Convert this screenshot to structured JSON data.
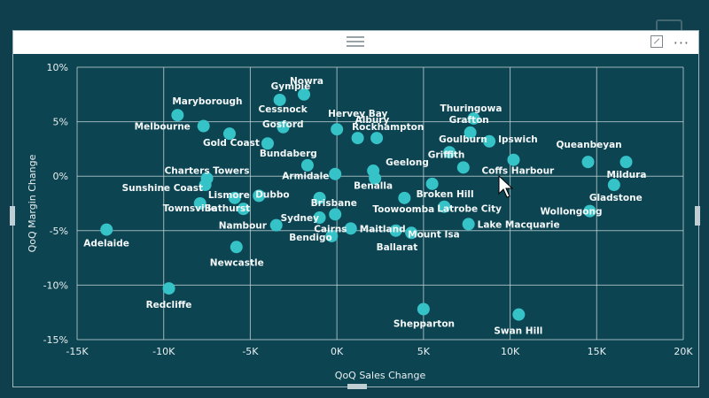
{
  "visual": {
    "more_label": "···"
  },
  "chart_data": {
    "type": "scatter",
    "xlabel": "QoQ Sales Change",
    "ylabel": "QoQ Margin Change",
    "xlim": [
      -15000,
      20000
    ],
    "ylim": [
      -0.15,
      0.1
    ],
    "x_ticks": [
      -15000,
      -10000,
      -5000,
      0,
      5000,
      10000,
      15000,
      20000
    ],
    "x_tick_labels": [
      "-15K",
      "-10K",
      "-5K",
      "0K",
      "5K",
      "10K",
      "15K",
      "20K"
    ],
    "y_ticks": [
      0.1,
      0.05,
      0.0,
      -0.05,
      -0.1,
      -0.15
    ],
    "y_tick_labels": [
      "10%",
      "5%",
      "0%",
      "-5%",
      "-10%",
      "-15%"
    ],
    "grid": true,
    "point_color": "#35c3c8",
    "points": [
      {
        "name": "Gympie",
        "x": -3300,
        "y": 0.07
      },
      {
        "name": "Nowra",
        "x": -1900,
        "y": 0.075
      },
      {
        "name": "Maryborough",
        "x": -9200,
        "y": 0.056
      },
      {
        "name": "Melbourne",
        "x": -7700,
        "y": 0.046
      },
      {
        "name": "Cessnock",
        "x": -3100,
        "y": 0.045
      },
      {
        "name": "Hervey Bay",
        "x": 0,
        "y": 0.043
      },
      {
        "name": "Albury",
        "x": 1200,
        "y": 0.035
      },
      {
        "name": "Thuringowa",
        "x": 7900,
        "y": 0.053
      },
      {
        "name": "Grafton",
        "x": 7700,
        "y": 0.04
      },
      {
        "name": "Ipswich",
        "x": 8800,
        "y": 0.032
      },
      {
        "name": "Gold Coast",
        "x": -6200,
        "y": 0.039
      },
      {
        "name": "Gosford",
        "x": -4000,
        "y": 0.03
      },
      {
        "name": "Rockhampton",
        "x": 2300,
        "y": 0.035
      },
      {
        "name": "Goulburn",
        "x": 6500,
        "y": 0.022
      },
      {
        "name": "Queanbeyan",
        "x": 14500,
        "y": 0.013
      },
      {
        "name": "Mildura",
        "x": 16700,
        "y": 0.013
      },
      {
        "name": "Bundaberg",
        "x": -1700,
        "y": 0.01
      },
      {
        "name": "Charters Towers",
        "x": -7500,
        "y": -0.002
      },
      {
        "name": "Geelong",
        "x": 2100,
        "y": 0.005
      },
      {
        "name": "Griffith",
        "x": 7300,
        "y": 0.008
      },
      {
        "name": "Coffs Harbour",
        "x": 10200,
        "y": 0.015
      },
      {
        "name": "Sunshine Coast",
        "x": -7600,
        "y": -0.008
      },
      {
        "name": "Armidale",
        "x": -100,
        "y": 0.002
      },
      {
        "name": "Benalla",
        "x": 2200,
        "y": -0.002
      },
      {
        "name": "Lismore",
        "x": -5900,
        "y": -0.02
      },
      {
        "name": "Dubbo",
        "x": -4500,
        "y": -0.018
      },
      {
        "name": "Brisbane",
        "x": -1000,
        "y": -0.02
      },
      {
        "name": "Broken Hill",
        "x": 5500,
        "y": -0.007
      },
      {
        "name": "Gladstone",
        "x": 16000,
        "y": -0.008
      },
      {
        "name": "Townsville",
        "x": -7900,
        "y": -0.025
      },
      {
        "name": "Bathurst",
        "x": -5400,
        "y": -0.03
      },
      {
        "name": "Latrobe City",
        "x": 6200,
        "y": -0.028
      },
      {
        "name": "Toowoomba",
        "x": 3900,
        "y": -0.02
      },
      {
        "name": "Wollongong",
        "x": 14600,
        "y": -0.032
      },
      {
        "name": "Nambour",
        "x": -3500,
        "y": -0.045
      },
      {
        "name": "Sydney",
        "x": -1000,
        "y": -0.038
      },
      {
        "name": "Adelaide",
        "x": -13300,
        "y": -0.049
      },
      {
        "name": "Bendigo",
        "x": -300,
        "y": -0.055
      },
      {
        "name": "Maitland",
        "x": 800,
        "y": -0.048
      },
      {
        "name": "Mount Isa",
        "x": 4300,
        "y": -0.052
      },
      {
        "name": "Lake Macquarie",
        "x": 7600,
        "y": -0.044
      },
      {
        "name": "Cairns",
        "x": -100,
        "y": -0.035
      },
      {
        "name": "Ballarat",
        "x": 3400,
        "y": -0.05
      },
      {
        "name": "Newcastle",
        "x": -5800,
        "y": -0.065
      },
      {
        "name": "Redcliffe",
        "x": -9700,
        "y": -0.103
      },
      {
        "name": "Shepparton",
        "x": 5000,
        "y": -0.122
      },
      {
        "name": "Swan Hill",
        "x": 10500,
        "y": -0.127
      }
    ]
  }
}
